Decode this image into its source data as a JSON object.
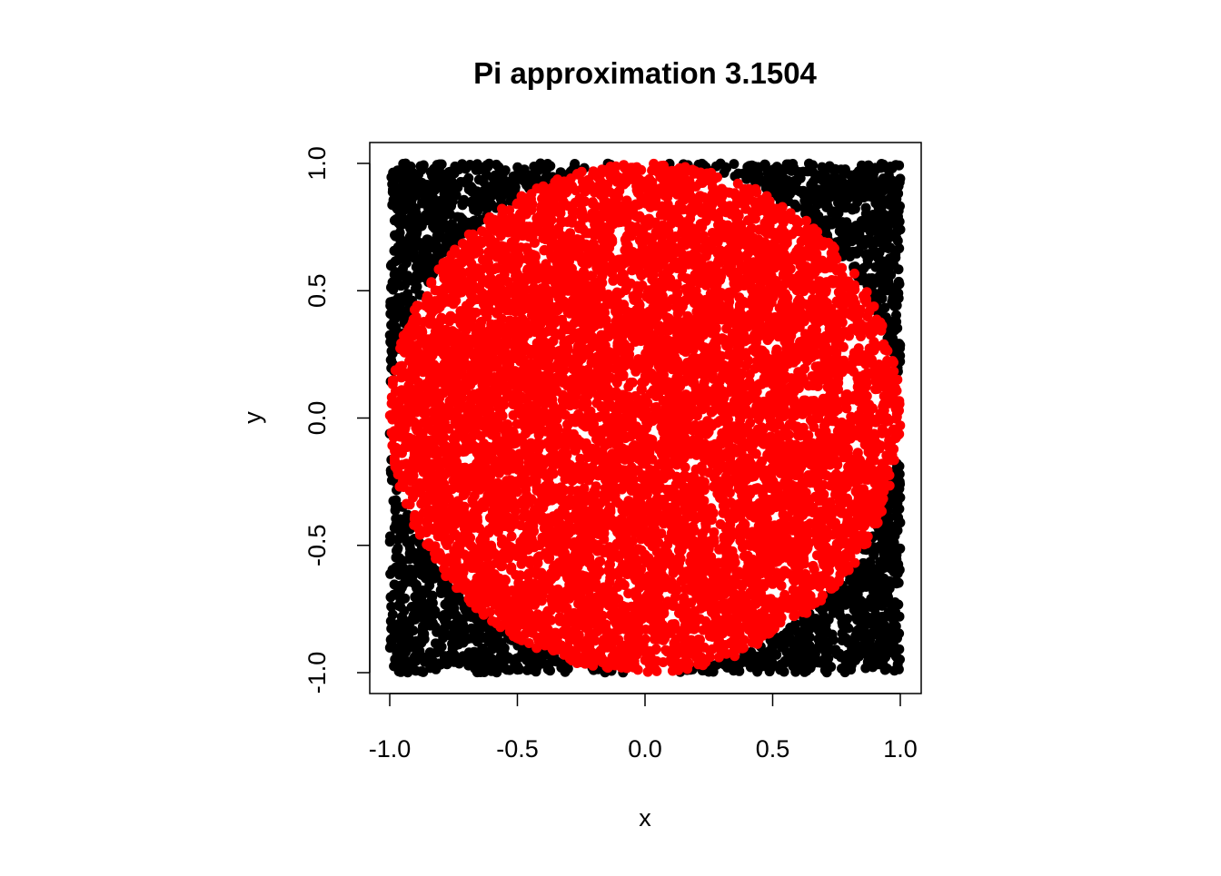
{
  "chart_data": {
    "type": "scatter",
    "title": "Pi approximation 3.1504",
    "xlabel": "x",
    "ylabel": "y",
    "xlim": [
      -1.0,
      1.0
    ],
    "ylim": [
      -1.0,
      1.0
    ],
    "x_ticks": [
      "-1.0",
      "-0.5",
      "0.0",
      "0.5",
      "1.0"
    ],
    "y_ticks": [
      "-1.0",
      "-0.5",
      "0.0",
      "0.5",
      "1.0"
    ],
    "grid": false,
    "legend": "none",
    "sample_count": 10000,
    "pi_estimate": 3.1504,
    "series": [
      {
        "name": "",
        "points_description": "uniform random points in [-1,1]x[-1,1] with x^2+y^2 > 1",
        "color": "#000000"
      },
      {
        "name": "",
        "points_description": "uniform random points in [-1,1]x[-1,1] with x^2+y^2 <= 1",
        "color": "#ff0000"
      }
    ]
  }
}
